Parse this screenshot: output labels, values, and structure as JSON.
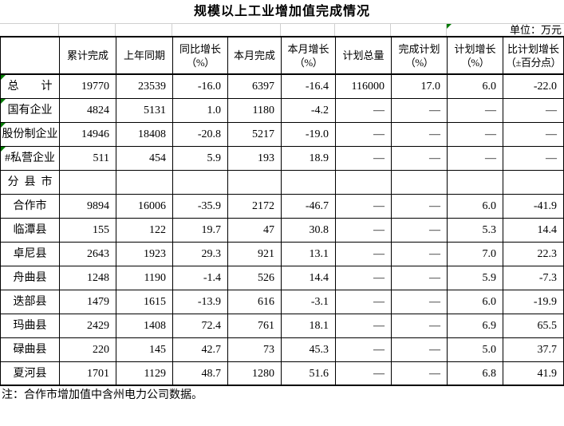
{
  "title": "规模以上工业增加值完成情况",
  "unit_label": "单位：万元",
  "note": "注：合作市增加值中含州电力公司数据。",
  "colors": {
    "background": "#ffffff",
    "border": "#000000",
    "gridline": "#d0d0d0",
    "flag_green": "#007a00",
    "text": "#000000"
  },
  "table": {
    "columns": [
      {
        "label": ""
      },
      {
        "label": "累计完成"
      },
      {
        "label": "上年同期"
      },
      {
        "label": "同比增长",
        "sub": "（%）"
      },
      {
        "label": "本月完成"
      },
      {
        "label": "本月增长",
        "sub": "（%）"
      },
      {
        "label": "计划总量"
      },
      {
        "label": "完成计划",
        "sub": "（%）"
      },
      {
        "label": "计划增长",
        "sub": "（%）"
      },
      {
        "label": "比计划增长",
        "sub": "（±百分点）"
      }
    ],
    "rows": [
      {
        "label": "总　　计",
        "flag": true,
        "values": [
          "19770",
          "23539",
          "-16.0",
          "6397",
          "-16.4",
          "116000",
          "17.0",
          "6.0",
          "-22.0"
        ]
      },
      {
        "label": "国有企业",
        "flag": true,
        "values": [
          "4824",
          "5131",
          "1.0",
          "1180",
          "-4.2",
          "—",
          "—",
          "—",
          "—"
        ]
      },
      {
        "label": "股份制企业",
        "flag": true,
        "values": [
          "14946",
          "18408",
          "-20.8",
          "5217",
          "-19.0",
          "—",
          "—",
          "—",
          "—"
        ]
      },
      {
        "label": "#私营企业",
        "flag": true,
        "values": [
          "511",
          "454",
          "5.9",
          "193",
          "18.9",
          "—",
          "—",
          "—",
          "—"
        ]
      },
      {
        "label": "分  县  市",
        "flag": false,
        "values": [
          "",
          "",
          "",
          "",
          "",
          "",
          "",
          "",
          ""
        ]
      },
      {
        "label": "合作市",
        "flag": false,
        "values": [
          "9894",
          "16006",
          "-35.9",
          "2172",
          "-46.7",
          "—",
          "—",
          "6.0",
          "-41.9"
        ]
      },
      {
        "label": "临潭县",
        "flag": false,
        "values": [
          "155",
          "122",
          "19.7",
          "47",
          "30.8",
          "—",
          "—",
          "5.3",
          "14.4"
        ]
      },
      {
        "label": "卓尼县",
        "flag": false,
        "values": [
          "2643",
          "1923",
          "29.3",
          "921",
          "13.1",
          "—",
          "—",
          "7.0",
          "22.3"
        ]
      },
      {
        "label": "舟曲县",
        "flag": false,
        "values": [
          "1248",
          "1190",
          "-1.4",
          "526",
          "14.4",
          "—",
          "—",
          "5.9",
          "-7.3"
        ]
      },
      {
        "label": "迭部县",
        "flag": false,
        "values": [
          "1479",
          "1615",
          "-13.9",
          "616",
          "-3.1",
          "—",
          "—",
          "6.0",
          "-19.9"
        ]
      },
      {
        "label": "玛曲县",
        "flag": false,
        "values": [
          "2429",
          "1408",
          "72.4",
          "761",
          "18.1",
          "—",
          "—",
          "6.9",
          "65.5"
        ]
      },
      {
        "label": "碌曲县",
        "flag": false,
        "values": [
          "220",
          "145",
          "42.7",
          "73",
          "45.3",
          "—",
          "—",
          "5.0",
          "37.7"
        ]
      },
      {
        "label": "夏河县",
        "flag": false,
        "values": [
          "1701",
          "1129",
          "48.7",
          "1280",
          "51.6",
          "—",
          "—",
          "6.8",
          "41.9"
        ]
      }
    ]
  }
}
